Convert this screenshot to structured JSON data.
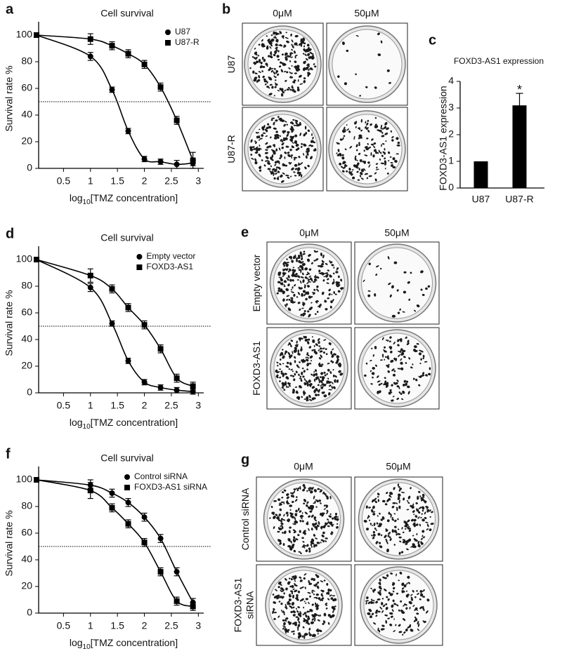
{
  "chart_data": [
    {
      "type": "line",
      "panel": "a",
      "title": "Cell survival",
      "x": [
        0,
        1,
        1.4,
        1.7,
        2,
        2.3,
        2.6,
        2.9
      ],
      "series": [
        {
          "name": "U87",
          "color": "#000000",
          "marker": "circle",
          "values": [
            100,
            84,
            59,
            28,
            7,
            5,
            3,
            4
          ],
          "errors": [
            1,
            3,
            2,
            2,
            2,
            2,
            3,
            2
          ]
        },
        {
          "name": "U87-R",
          "color": "#000000",
          "marker": "square",
          "values": [
            100,
            97,
            92,
            86,
            78,
            61,
            36,
            6
          ],
          "errors": [
            1,
            4,
            3,
            3,
            3,
            3,
            3,
            6
          ]
        }
      ],
      "xlim": [
        0,
        3.1
      ],
      "ylim": [
        0,
        110
      ],
      "xticks": [
        0.5,
        1,
        1.5,
        2,
        2.5,
        3
      ],
      "yticks": [
        0,
        20,
        40,
        60,
        80,
        100
      ],
      "x_label": [
        "log",
        "10",
        "[TMZ concentration]"
      ],
      "y_label": "Survival rate %",
      "reference_line": 50,
      "legend": "upper right"
    },
    {
      "type": "bar",
      "panel": "c",
      "title": "FOXD3-AS1 expression",
      "categories": [
        "U87",
        "U87-R"
      ],
      "values": [
        1,
        3.1
      ],
      "errors": [
        null,
        0.45
      ],
      "value_annotations": [
        null,
        "*"
      ],
      "color": "#000000",
      "ylim": [
        0,
        4
      ],
      "yticks": [
        0,
        1,
        2,
        3,
        4
      ],
      "y_label": "FOXD3-AS1 expression"
    },
    {
      "type": "line",
      "panel": "d",
      "title": "Cell survival",
      "x": [
        0,
        1,
        1.4,
        1.7,
        2,
        2.3,
        2.6,
        2.9
      ],
      "series": [
        {
          "name": "Empty vector",
          "color": "#000000",
          "marker": "circle",
          "values": [
            100,
            79,
            52,
            24,
            8,
            4,
            2,
            1
          ],
          "errors": [
            1,
            3,
            2,
            2,
            2,
            2,
            2,
            2
          ]
        },
        {
          "name": "FOXD3-AS1",
          "color": "#000000",
          "marker": "square",
          "values": [
            100,
            88,
            78,
            64,
            51,
            33,
            11,
            5
          ],
          "errors": [
            1,
            5,
            3,
            3,
            3,
            3,
            3,
            3
          ]
        }
      ],
      "xlim": [
        0,
        3.1
      ],
      "ylim": [
        0,
        110
      ],
      "xticks": [
        0.5,
        1,
        1.5,
        2,
        2.5,
        3
      ],
      "yticks": [
        0,
        20,
        40,
        60,
        80,
        100
      ],
      "x_label": [
        "log",
        "10",
        "[TMZ concentration]"
      ],
      "y_label": "Survival rate %",
      "reference_line": 50,
      "legend": "upper right"
    },
    {
      "type": "line",
      "panel": "f",
      "title": "Cell survival",
      "x": [
        0,
        1,
        1.4,
        1.7,
        2,
        2.3,
        2.6,
        2.9
      ],
      "series": [
        {
          "name": "Control siRNA",
          "color": "#000000",
          "marker": "circle",
          "values": [
            100,
            96,
            90,
            83,
            72,
            56,
            31,
            8
          ],
          "errors": [
            1,
            4,
            3,
            3,
            3,
            3,
            3,
            3
          ]
        },
        {
          "name": "FOXD3-AS1 siRNA",
          "color": "#000000",
          "marker": "square",
          "values": [
            100,
            92,
            79,
            67,
            53,
            31,
            9,
            5
          ],
          "errors": [
            1,
            6,
            3,
            3,
            3,
            3,
            3,
            3
          ]
        }
      ],
      "xlim": [
        0,
        3.1
      ],
      "ylim": [
        0,
        110
      ],
      "xticks": [
        0.5,
        1,
        1.5,
        2,
        2.5,
        3
      ],
      "yticks": [
        0,
        20,
        40,
        60,
        80,
        100
      ],
      "x_label": [
        "log",
        "10",
        "[TMZ concentration]"
      ],
      "y_label": "Survival rate %",
      "reference_line": 50,
      "legend": "upper right"
    }
  ],
  "plate_panels": [
    {
      "panel": "b",
      "columns": [
        "0μM",
        "50μM"
      ],
      "rows": [
        [
          "U87"
        ],
        [
          "U87-R"
        ]
      ]
    },
    {
      "panel": "e",
      "columns": [
        "0μM",
        "50μM"
      ],
      "rows": [
        [
          "Empty vector"
        ],
        [
          "FOXD3-AS1"
        ]
      ]
    },
    {
      "panel": "g",
      "columns": [
        "0μM",
        "50μM"
      ],
      "rows": [
        [
          "Control siRNA"
        ],
        [
          "FOXD3-AS1",
          "siRNA"
        ]
      ]
    }
  ]
}
